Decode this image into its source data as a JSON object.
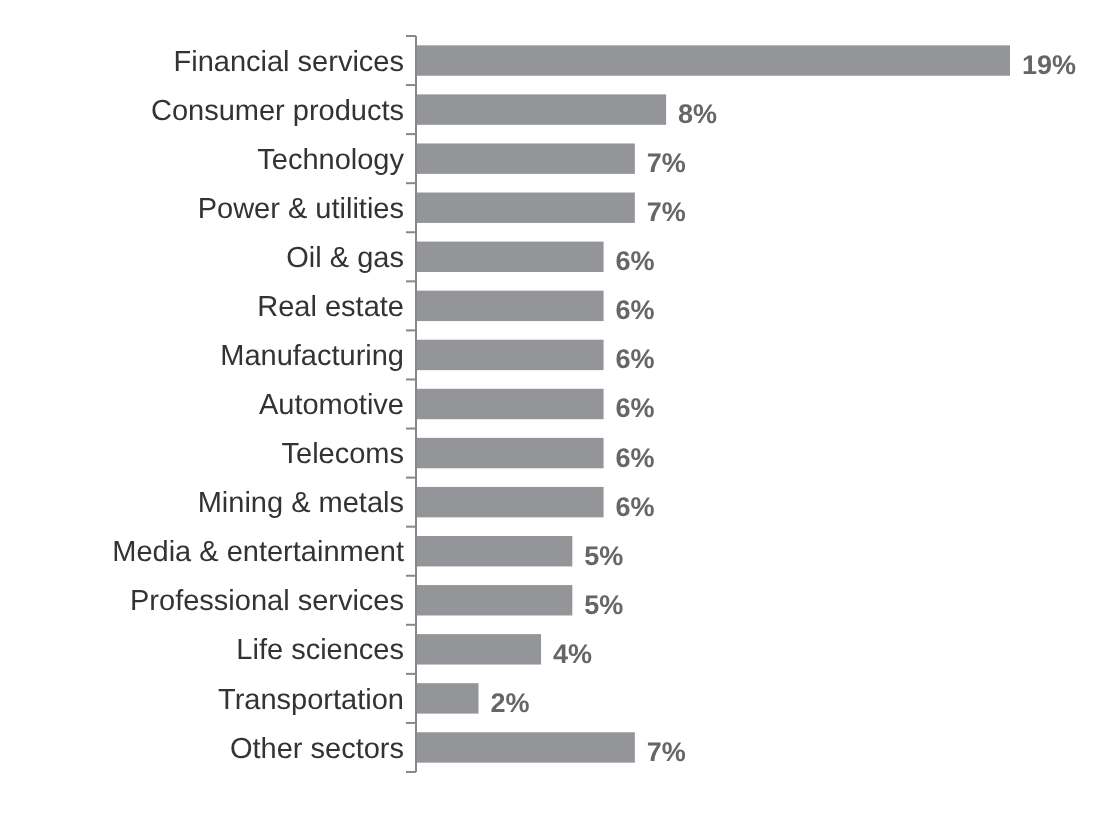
{
  "chart_data": {
    "type": "bar",
    "orientation": "horizontal",
    "categories": [
      "Financial services",
      "Consumer products",
      "Technology",
      "Power & utilities",
      "Oil & gas",
      "Real estate",
      "Manufacturing",
      "Automotive",
      "Telecoms",
      "Mining & metals",
      "Media & entertainment",
      "Professional services",
      "Life sciences",
      "Transportation",
      "Other sectors"
    ],
    "values": [
      19,
      8,
      7,
      7,
      6,
      6,
      6,
      6,
      6,
      6,
      5,
      5,
      4,
      2,
      7
    ],
    "value_labels": [
      "19%",
      "8%",
      "7%",
      "7%",
      "6%",
      "6%",
      "6%",
      "6%",
      "6%",
      "6%",
      "5%",
      "5%",
      "4%",
      "2%",
      "7%"
    ],
    "color": "#939598"
  }
}
